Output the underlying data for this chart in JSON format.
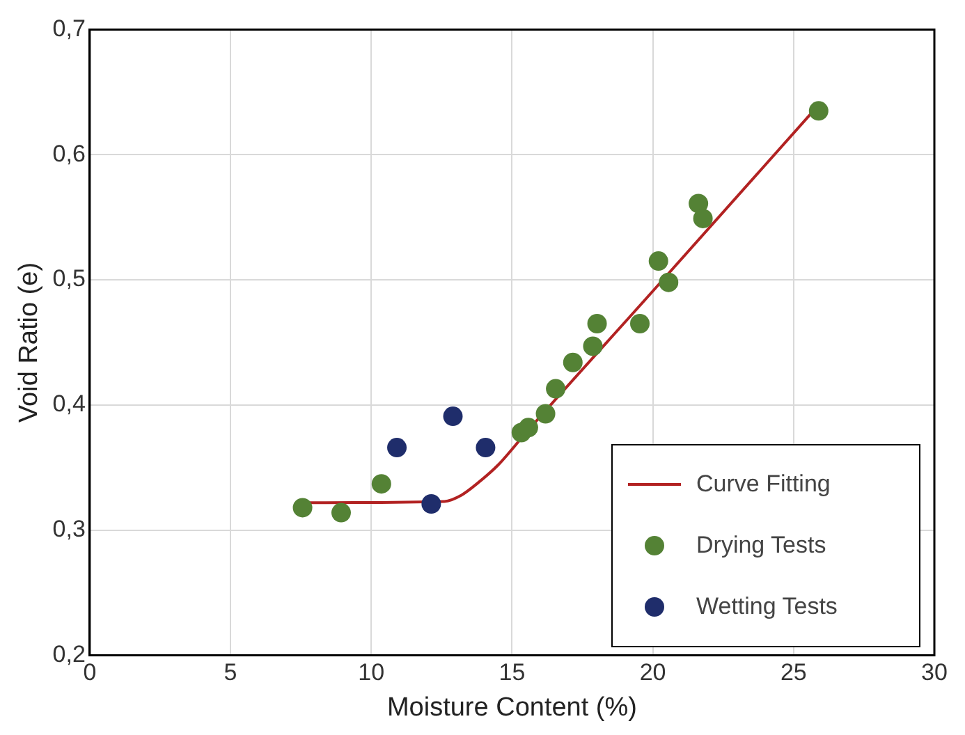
{
  "chart_data": {
    "type": "scatter",
    "xlabel": "Moisture Content (%)",
    "ylabel": "Void Ratio (e)",
    "xlim": [
      0,
      30
    ],
    "xticks": [
      0,
      5,
      10,
      15,
      20,
      25,
      30
    ],
    "ylim": [
      0.2,
      0.7
    ],
    "yticks": [
      {
        "value": 0.2,
        "label": "0,2"
      },
      {
        "value": 0.3,
        "label": "0,3"
      },
      {
        "value": 0.4,
        "label": "0,4"
      },
      {
        "value": 0.5,
        "label": "0,5"
      },
      {
        "value": 0.6,
        "label": "0,6"
      },
      {
        "value": 0.7,
        "label": "0,7"
      }
    ],
    "grid": true,
    "legend": "bottom right",
    "marker": "circle",
    "series": [
      {
        "name": "Curve Fitting",
        "type": "line",
        "marker": "none",
        "line_style": "solid",
        "color": "#b22222",
        "x": [
          7.6,
          12.6,
          13.2,
          13.8,
          14.5,
          15.5,
          20,
          25.9
        ],
        "values": [
          0.322,
          0.323,
          0.328,
          0.338,
          0.352,
          0.378,
          0.491,
          0.64
        ]
      },
      {
        "name": "Drying Tests",
        "color": "#548235",
        "x": [
          7.56,
          8.93,
          10.36,
          15.33,
          15.58,
          16.19,
          16.55,
          17.16,
          17.87,
          18.02,
          19.54,
          20.2,
          20.56,
          21.62,
          21.78,
          25.89
        ],
        "values": [
          0.318,
          0.314,
          0.337,
          0.378,
          0.382,
          0.393,
          0.413,
          0.434,
          0.447,
          0.465,
          0.465,
          0.515,
          0.498,
          0.561,
          0.549,
          0.635
        ]
      },
      {
        "name": "Wetting Tests",
        "color": "#1f2d6b",
        "x": [
          10.91,
          12.13,
          12.9,
          14.06
        ],
        "values": [
          0.366,
          0.321,
          0.391,
          0.366
        ]
      }
    ]
  }
}
